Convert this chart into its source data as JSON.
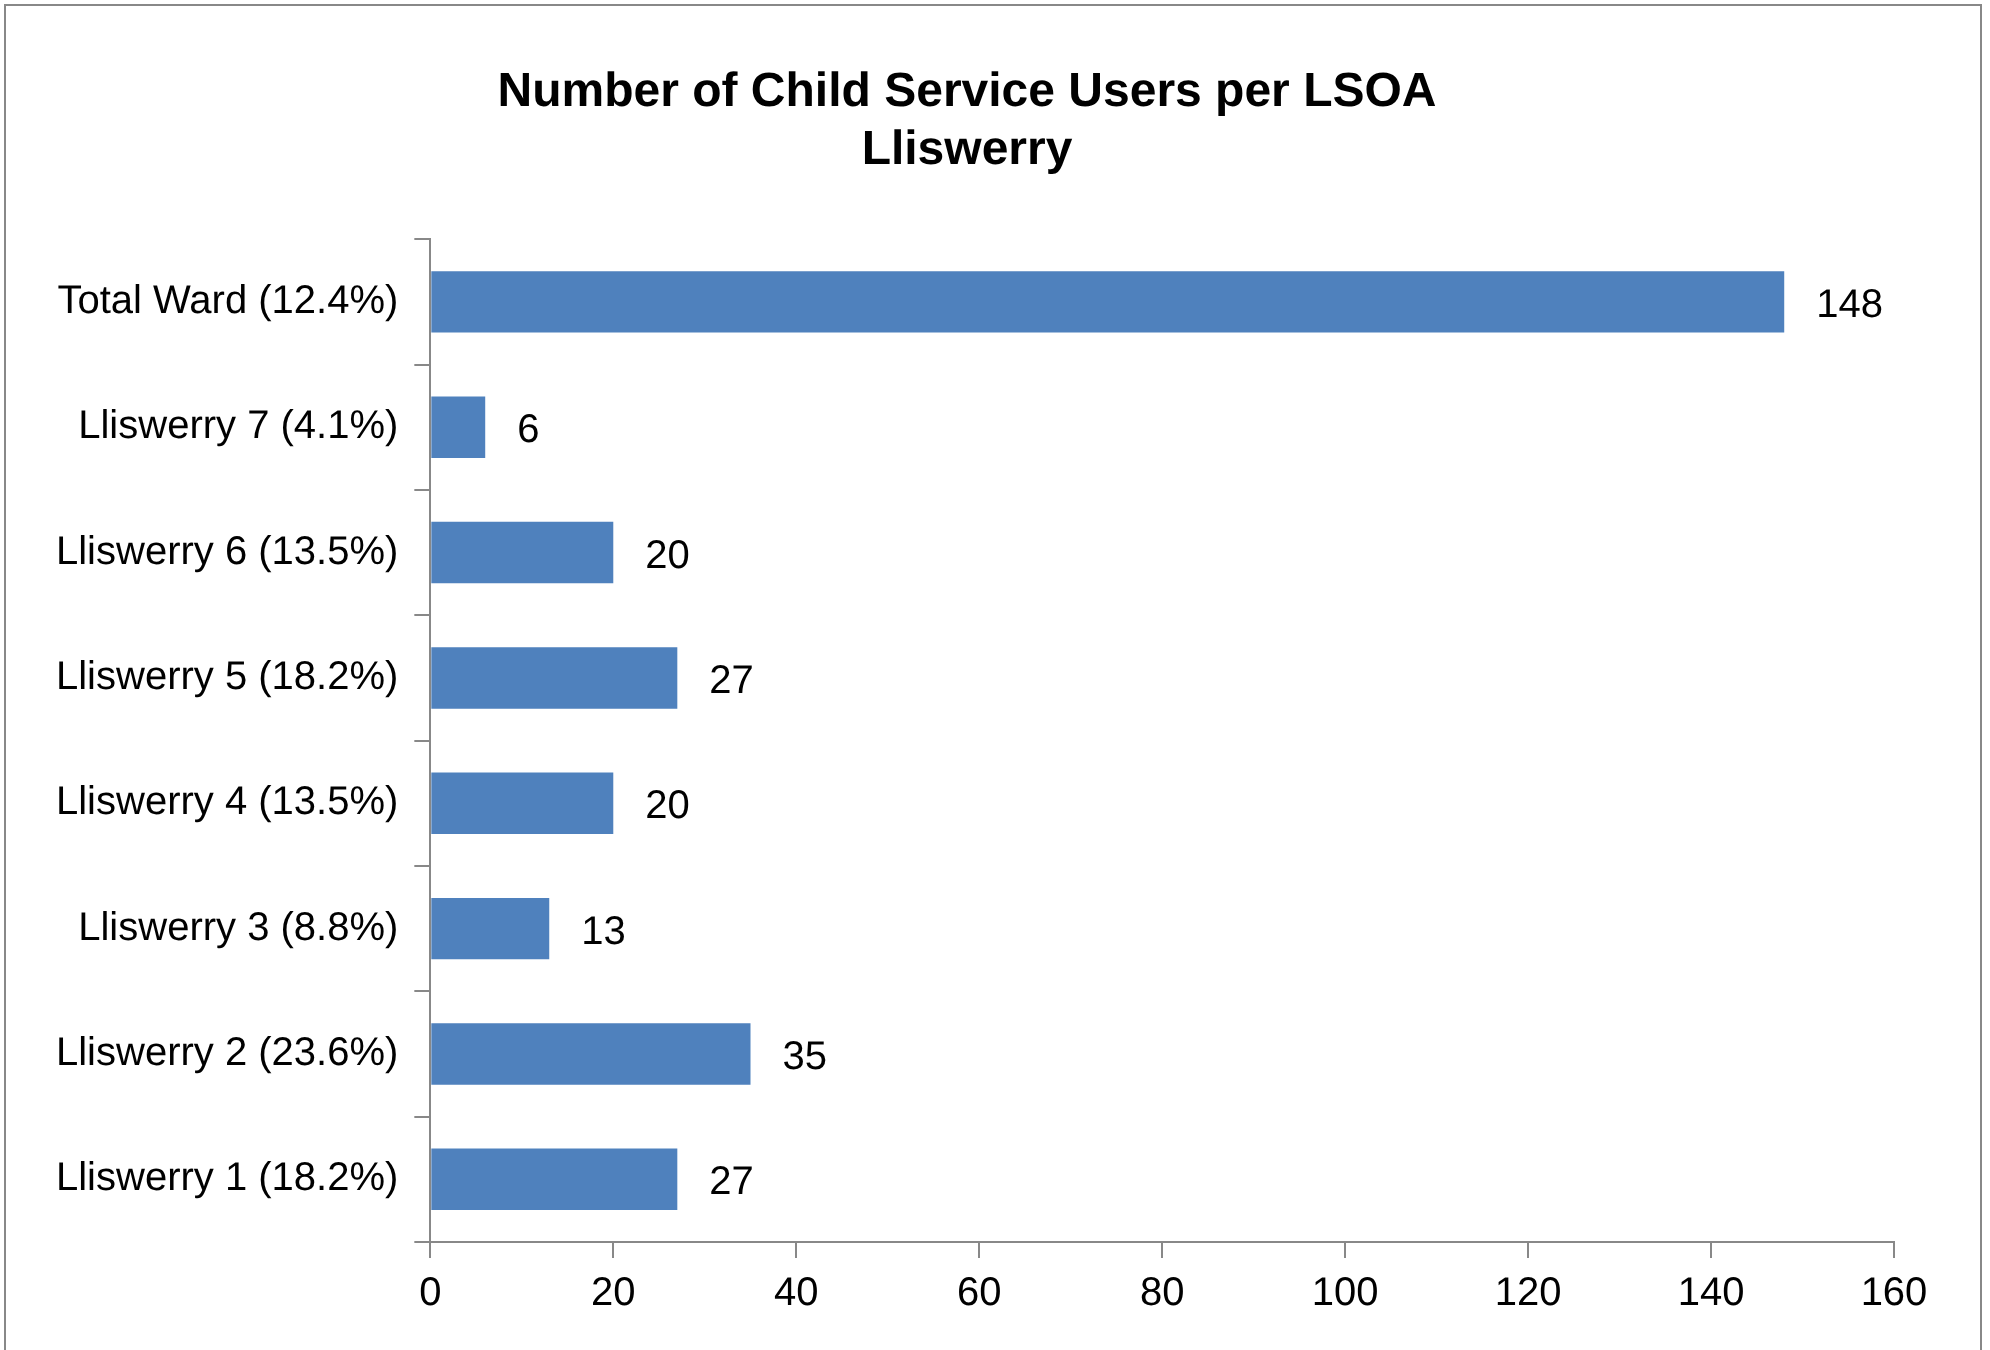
{
  "chart_data": {
    "type": "bar",
    "orientation": "horizontal",
    "title": "Number of Child Service Users per LSOA\nLliswerry",
    "categories": [
      "Total Ward (12.4%)",
      "Lliswerry 7 (4.1%)",
      "Lliswerry 6 (13.5%)",
      "Lliswerry 5 (18.2%)",
      "Lliswerry 4 (13.5%)",
      "Lliswerry 3 (8.8%)",
      "Lliswerry 2 (23.6%)",
      "Lliswerry 1 (18.2%)"
    ],
    "values": [
      148,
      6,
      20,
      27,
      20,
      13,
      35,
      27
    ],
    "color": "#4f81bd",
    "xlim": [
      0,
      160
    ],
    "xticks": [
      0,
      20,
      40,
      60,
      80,
      100,
      120,
      140,
      160
    ],
    "grid": false,
    "legend": false,
    "data_labels": true
  }
}
